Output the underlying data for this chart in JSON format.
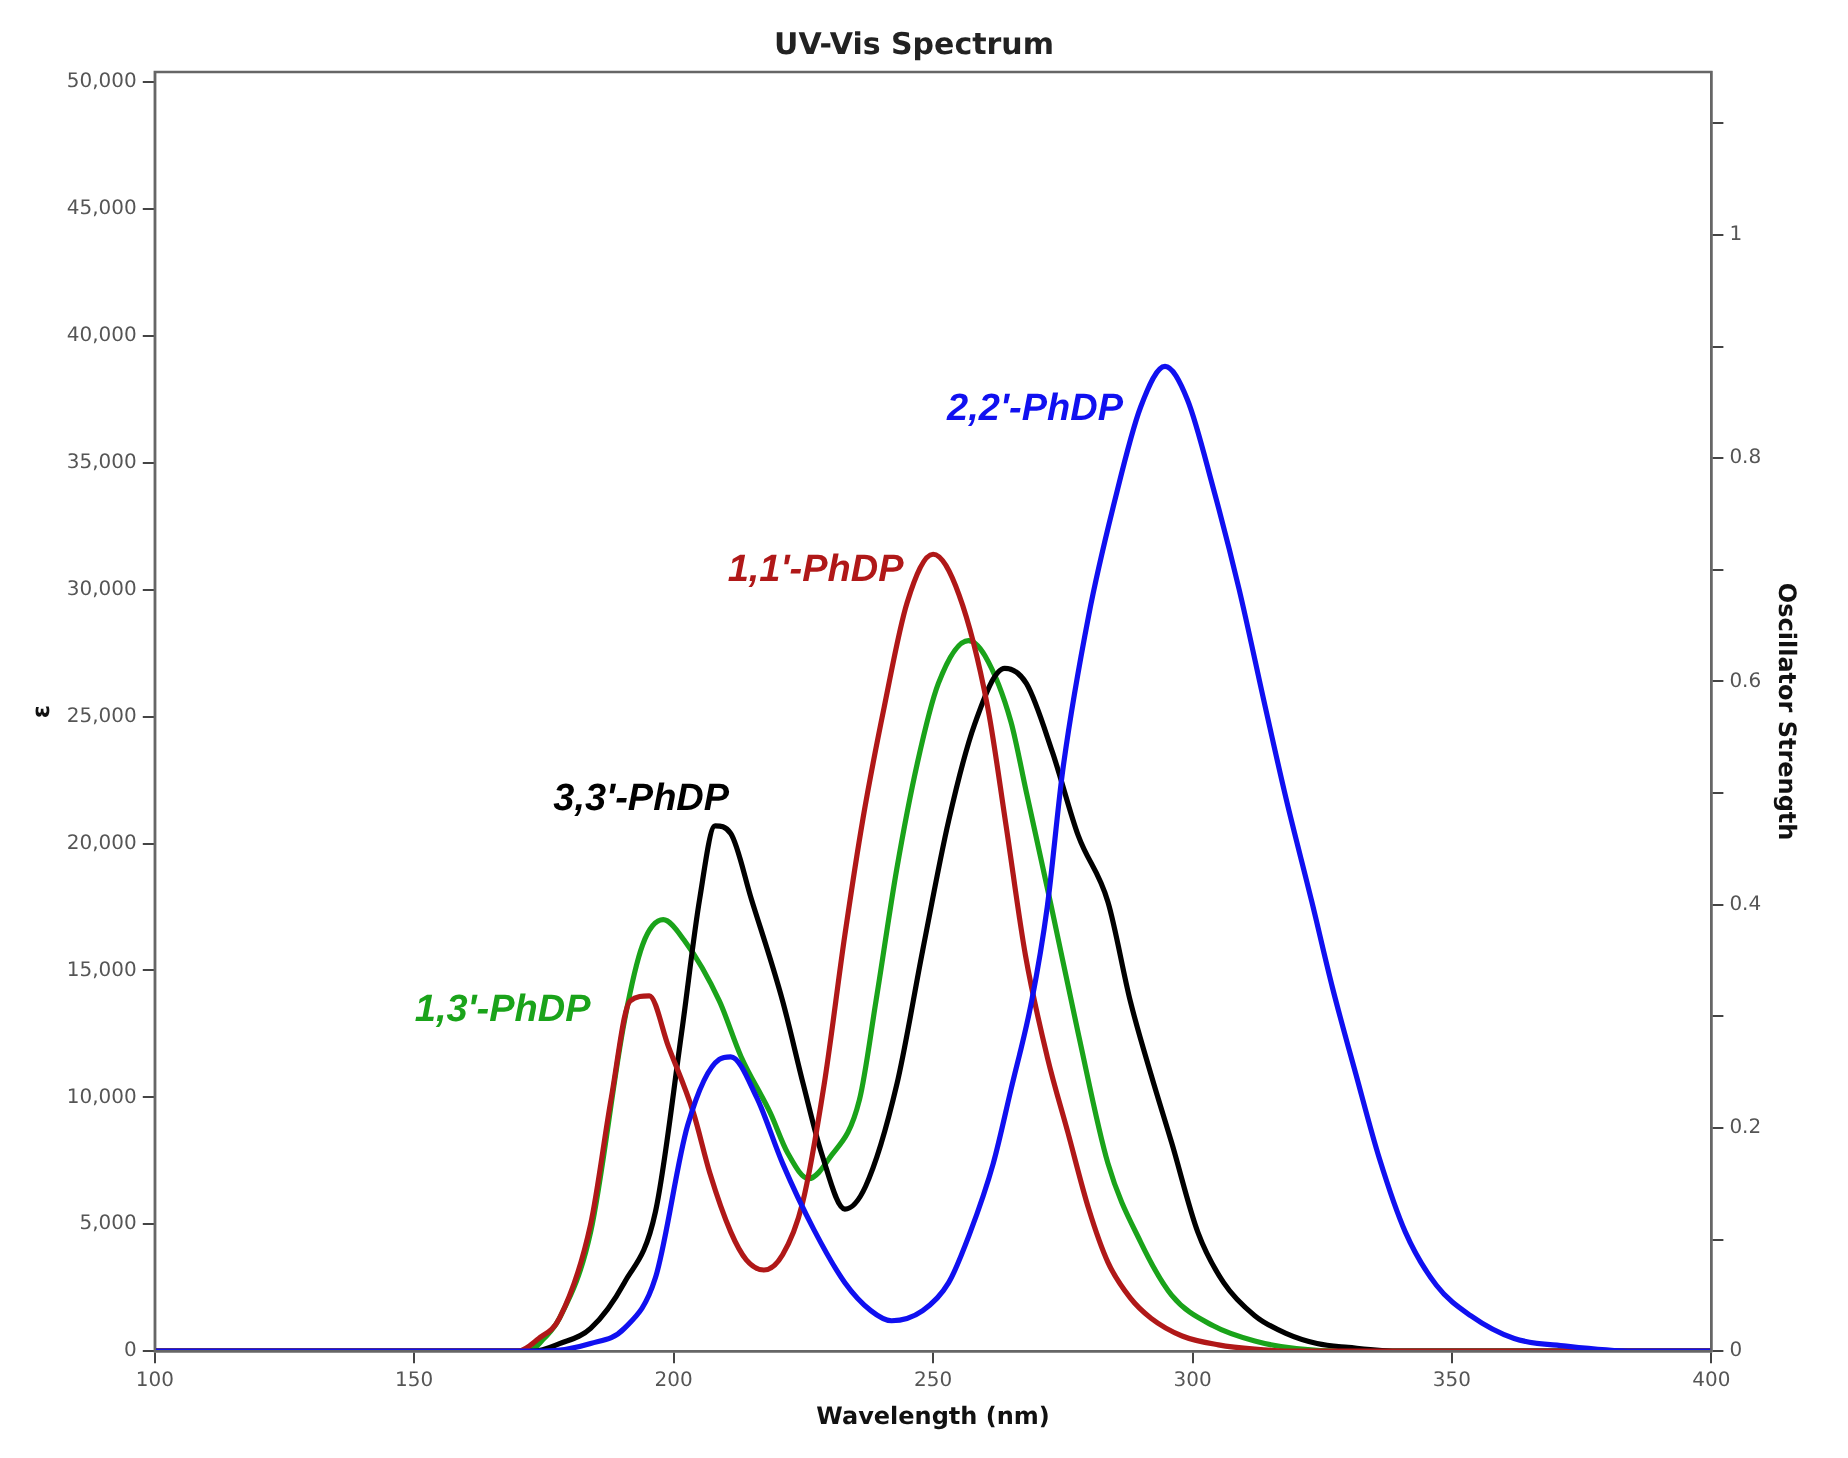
{
  "chart_data": {
    "type": "line",
    "title": "UV-Vis Spectrum",
    "xlabel": "Wavelength (nm)",
    "ylabel": "ε",
    "y2label": "Oscillator Strength",
    "xlim": [
      100,
      400
    ],
    "xticks": [
      100,
      150,
      200,
      250,
      300,
      350,
      400
    ],
    "ylim": [
      0,
      50400
    ],
    "yticks": [
      0,
      {
        "value": 5000,
        "label": "5,000"
      },
      {
        "value": 10000,
        "label": "10,000"
      },
      {
        "value": 15000,
        "label": "15,000"
      },
      {
        "value": 20000,
        "label": "20,000"
      },
      {
        "value": 25000,
        "label": "25,000"
      },
      {
        "value": 30000,
        "label": "30,000"
      },
      {
        "value": 35000,
        "label": "35,000"
      },
      {
        "value": 40000,
        "label": "40,000"
      },
      {
        "value": 45000,
        "label": "45,000"
      },
      {
        "value": 50000,
        "label": "50,000"
      }
    ],
    "y2lim": [
      0,
      1.146
    ],
    "y2ticks": [
      0,
      {
        "value": 0.1,
        "label": null
      },
      0.2,
      {
        "value": 0.3,
        "label": null
      },
      0.4,
      {
        "value": 0.5,
        "label": null
      },
      0.6,
      {
        "value": 0.7,
        "label": null
      },
      0.8,
      {
        "value": 0.9,
        "label": null
      },
      1,
      {
        "value": 1.1,
        "label": null
      }
    ],
    "grid": false,
    "legend": false,
    "marker": "none",
    "line_style": "solid",
    "series": [
      {
        "name": "2,2'-PhDP",
        "color": "#1010f0",
        "x": [
          100,
          175,
          184,
          190.5,
          196.5,
          202.7,
          208.8,
          211,
          216,
          221,
          227,
          233,
          238,
          242,
          248,
          253,
          257,
          261.6,
          265,
          269,
          272,
          275,
          280,
          285,
          290,
          294.7,
          299,
          304,
          309,
          314,
          318,
          323,
          327,
          331.5,
          336,
          341,
          347,
          353.6,
          362,
          372,
          385,
          400
        ],
        "values": [
          0,
          0,
          300,
          900,
          2900,
          8900,
          11500,
          11600,
          10000,
          7400,
          4800,
          2700,
          1600,
          1200,
          1600,
          2700,
          4600,
          7400,
          10300,
          13800,
          17500,
          22900,
          29000,
          33500,
          37200,
          38800,
          37500,
          34000,
          30000,
          25400,
          21800,
          17700,
          14300,
          10900,
          7600,
          4700,
          2600,
          1400,
          500,
          200,
          0,
          0
        ]
      },
      {
        "name": "1,1'-PhDP",
        "color": "#b01818",
        "x": [
          100,
          170,
          174,
          178,
          184,
          188,
          191.6,
          195.3,
          199,
          203.8,
          207,
          211,
          214,
          217.4,
          221,
          224.8,
          229,
          233,
          236.5,
          240.6,
          245,
          250,
          255,
          260.5,
          264,
          267.8,
          272,
          276,
          280,
          283.7,
          288,
          292,
          298,
          305,
          312,
          320,
          400
        ],
        "values": [
          0,
          0,
          500,
          1300,
          5000,
          10000,
          13800,
          14000,
          12000,
          9400,
          7000,
          4700,
          3600,
          3200,
          3800,
          5800,
          10500,
          16400,
          21000,
          25400,
          29500,
          31400,
          29800,
          25400,
          20800,
          15600,
          11600,
          8600,
          5600,
          3500,
          2100,
          1300,
          600,
          250,
          80,
          0,
          0
        ]
      },
      {
        "name": "3,3'-PhDP",
        "color": "#000000",
        "x": [
          100,
          173,
          178,
          184,
          190.5,
          196.5,
          201.5,
          205,
          208,
          211,
          215,
          221,
          225,
          228.5,
          233,
          237,
          243,
          248,
          253,
          258,
          263.8,
          268,
          273,
          278,
          283.7,
          288,
          292,
          296,
          301,
          306,
          312,
          318,
          324,
          330,
          340,
          400
        ],
        "values": [
          0,
          0,
          300,
          900,
          2700,
          5500,
          12500,
          17800,
          20700,
          20400,
          17800,
          13800,
          10500,
          7800,
          5600,
          6500,
          10500,
          15800,
          20900,
          24700,
          26900,
          26300,
          23600,
          20300,
          17700,
          13800,
          10900,
          8200,
          4700,
          2700,
          1400,
          700,
          300,
          150,
          0,
          0
        ]
      },
      {
        "name": "1,3'-PhDP",
        "color": "#1aa31a",
        "x": [
          100,
          172,
          175,
          178,
          184,
          190.5,
          194,
          198,
          202,
          208.8,
          213,
          218.6,
          222,
          226,
          230,
          235.8,
          239,
          243,
          247,
          251,
          256.8,
          260,
          265,
          268,
          272.6,
          278,
          283.7,
          290,
          296,
          304,
          312,
          320,
          330,
          400
        ],
        "values": [
          0,
          0,
          500,
          1300,
          4700,
          13000,
          16000,
          17000,
          16200,
          13800,
          11600,
          9400,
          7800,
          6800,
          7600,
          9900,
          13800,
          19000,
          23200,
          26300,
          28000,
          27400,
          24800,
          22000,
          17700,
          12500,
          7400,
          4300,
          2200,
          1000,
          400,
          100,
          0,
          0
        ]
      }
    ]
  }
}
